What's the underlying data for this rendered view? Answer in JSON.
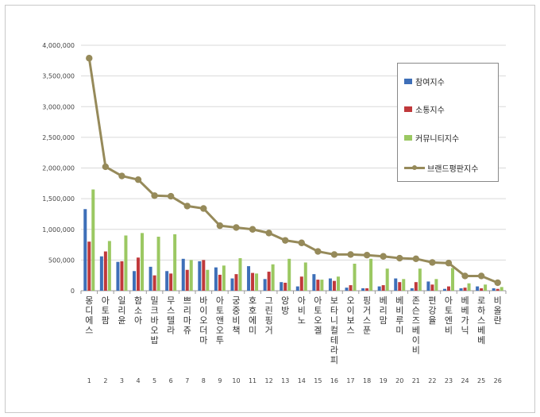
{
  "chart_data": {
    "type": "bar",
    "ylim": [
      0,
      4000000
    ],
    "y_ticks": [
      "0",
      "500,000",
      "1,000,000",
      "1,500,000",
      "2,000,000",
      "2,500,000",
      "3,000,000",
      "3,500,000",
      "4,000,000"
    ],
    "brands": [
      "몽디에스",
      "아토팜",
      "일리윤",
      "함소아",
      "밀크바오밥",
      "무스텔라",
      "쁘리마쥬",
      "바이오더마",
      "아토앤오투",
      "궁중비책",
      "호호에미",
      "그린핑거",
      "앙방",
      "아비노",
      "아토오겔",
      "보타니컬테라피",
      "오이보스",
      "핑거스푼",
      "베리맘",
      "베비루미",
      "존슨즈베이비",
      "편강율",
      "아토엔비",
      "베베가닉",
      "로하스베베",
      "비올란"
    ],
    "ranks": [
      "1",
      "2",
      "3",
      "4",
      "5",
      "6",
      "7",
      "8",
      "9",
      "10",
      "11",
      "12",
      "13",
      "14",
      "15",
      "16",
      "17",
      "18",
      "19",
      "20",
      "21",
      "22",
      "23",
      "24",
      "25",
      "26"
    ],
    "series": [
      {
        "name": "참여지수",
        "kind": "bar",
        "color": "#3e6fb8",
        "values": [
          1330000,
          560000,
          470000,
          320000,
          390000,
          320000,
          520000,
          480000,
          380000,
          200000,
          400000,
          190000,
          140000,
          70000,
          270000,
          200000,
          50000,
          40000,
          70000,
          200000,
          40000,
          150000,
          30000,
          40000,
          70000,
          40000
        ]
      },
      {
        "name": "소통지수",
        "kind": "bar",
        "color": "#c0393b",
        "values": [
          800000,
          640000,
          480000,
          540000,
          250000,
          280000,
          340000,
          500000,
          260000,
          270000,
          290000,
          310000,
          130000,
          230000,
          180000,
          160000,
          90000,
          40000,
          90000,
          140000,
          140000,
          100000,
          70000,
          50000,
          40000,
          30000
        ]
      },
      {
        "name": "커뮤니티지수",
        "kind": "bar",
        "color": "#9bc862",
        "values": [
          1650000,
          810000,
          900000,
          940000,
          880000,
          920000,
          500000,
          340000,
          410000,
          530000,
          280000,
          430000,
          520000,
          460000,
          180000,
          230000,
          440000,
          520000,
          360000,
          190000,
          360000,
          190000,
          370000,
          120000,
          100000,
          60000
        ]
      },
      {
        "name": "브랜드평판지수",
        "kind": "line",
        "color": "#968a5a",
        "values": [
          3790000,
          2020000,
          1870000,
          1810000,
          1550000,
          1540000,
          1380000,
          1340000,
          1060000,
          1030000,
          1000000,
          940000,
          820000,
          780000,
          640000,
          590000,
          590000,
          580000,
          560000,
          530000,
          520000,
          460000,
          450000,
          240000,
          240000,
          130000
        ]
      }
    ]
  }
}
